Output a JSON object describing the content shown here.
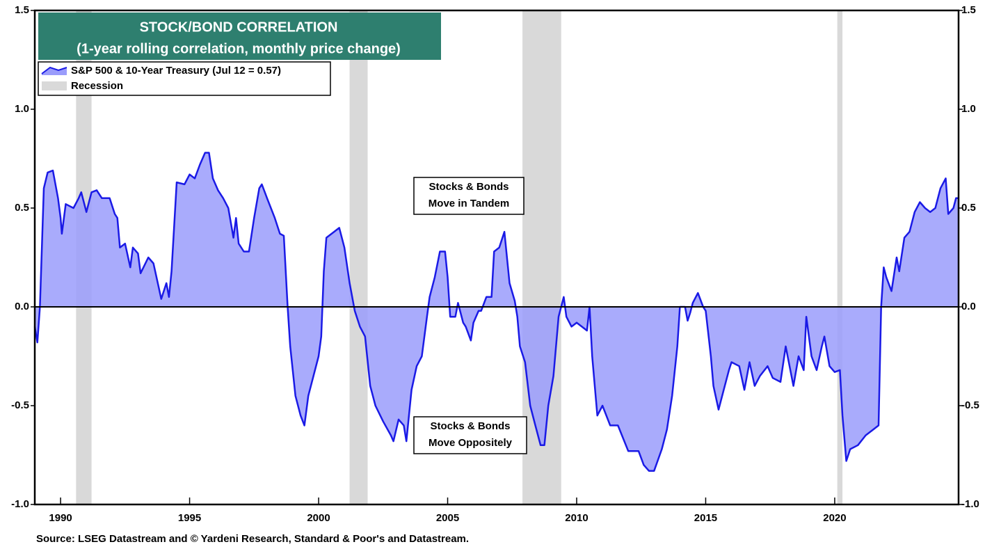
{
  "chart_data": {
    "type": "area",
    "title": "STOCK/BOND CORRELATION",
    "subtitle": "(1-year rolling correlation, monthly price change)",
    "source": "Source: LSEG Datastream and © Yardeni Research, Standard & Poor's and Datastream.",
    "xlim": [
      1989.0,
      2024.8
    ],
    "xticks": [
      1990,
      1995,
      2000,
      2005,
      2010,
      2015,
      2020
    ],
    "ylim": [
      -1.0,
      1.5
    ],
    "yticks": [
      {
        "value": -1.0,
        "label": "-1.0"
      },
      -0.5,
      {
        "value": 0.0,
        "label": "0.0"
      },
      0.5,
      {
        "value": 1.0,
        "label": "1.0"
      },
      1.5
    ],
    "y2lim": [
      -1.0,
      1.5
    ],
    "y2ticks": [
      {
        "value": -1.0,
        "label": "-1.0"
      },
      -0.5,
      {
        "value": 0.0,
        "label": "0.0"
      },
      0.5,
      {
        "value": 1.0,
        "label": "1.0"
      },
      1.5
    ],
    "legend": "top-left",
    "recessions": {
      "name": "Recession",
      "color": "#d9d9d9",
      "spans": [
        [
          1990.6,
          1991.2
        ],
        [
          2001.2,
          2001.9
        ],
        [
          2007.9,
          2009.4
        ],
        [
          2020.1,
          2020.3
        ]
      ]
    },
    "x": [
      1989.0,
      1989.1,
      1989.2,
      1989.35,
      1989.5,
      1989.7,
      1989.9,
      1990.0,
      1990.05,
      1990.2,
      1990.5,
      1990.7,
      1990.8,
      1991.0,
      1991.2,
      1991.4,
      1991.6,
      1991.9,
      1992.1,
      1992.2,
      1992.3,
      1992.5,
      1992.7,
      1992.8,
      1993.0,
      1993.1,
      1993.4,
      1993.6,
      1993.8,
      1993.9,
      1994.1,
      1994.2,
      1994.3,
      1994.5,
      1994.8,
      1995.0,
      1995.2,
      1995.4,
      1995.6,
      1995.75,
      1995.9,
      1996.1,
      1996.3,
      1996.5,
      1996.7,
      1996.8,
      1996.9,
      1997.1,
      1997.3,
      1997.5,
      1997.7,
      1997.8,
      1998.0,
      1998.3,
      1998.5,
      1998.65,
      1998.8,
      1998.9,
      1999.1,
      1999.3,
      1999.45,
      1999.6,
      1999.8,
      2000.0,
      2000.1,
      2000.2,
      2000.3,
      2000.6,
      2000.8,
      2001.0,
      2001.2,
      2001.4,
      2001.6,
      2001.8,
      2002.0,
      2002.2,
      2002.5,
      2002.8,
      2002.9,
      2003.1,
      2003.3,
      2003.4,
      2003.6,
      2003.8,
      2004.0,
      2004.2,
      2004.3,
      2004.5,
      2004.7,
      2004.9,
      2005.0,
      2005.1,
      2005.3,
      2005.4,
      2005.6,
      2005.7,
      2005.9,
      2006.0,
      2006.2,
      2006.3,
      2006.5,
      2006.7,
      2006.8,
      2007.0,
      2007.2,
      2007.4,
      2007.6,
      2007.7,
      2007.8,
      2008.0,
      2008.2,
      2008.4,
      2008.6,
      2008.75,
      2008.9,
      2009.1,
      2009.3,
      2009.5,
      2009.6,
      2009.8,
      2010.0,
      2010.2,
      2010.4,
      2010.5,
      2010.6,
      2010.8,
      2011.0,
      2011.3,
      2011.6,
      2012.0,
      2012.4,
      2012.6,
      2012.8,
      2013.0,
      2013.3,
      2013.5,
      2013.7,
      2013.9,
      2014.0,
      2014.2,
      2014.3,
      2014.4,
      2014.5,
      2014.7,
      2014.9,
      2015.0,
      2015.2,
      2015.3,
      2015.5,
      2015.7,
      2015.9,
      2016.0,
      2016.3,
      2016.5,
      2016.7,
      2016.9,
      2017.1,
      2017.4,
      2017.6,
      2017.9,
      2018.1,
      2018.4,
      2018.6,
      2018.8,
      2018.9,
      2019.1,
      2019.3,
      2019.5,
      2019.6,
      2019.8,
      2020.0,
      2020.2,
      2020.3,
      2020.45,
      2020.6,
      2020.9,
      2021.2,
      2021.5,
      2021.7,
      2021.8,
      2021.9,
      2022.0,
      2022.2,
      2022.4,
      2022.5,
      2022.7,
      2022.9,
      2023.1,
      2023.3,
      2023.5,
      2023.7,
      2023.9,
      2024.1,
      2024.3,
      2024.4,
      2024.6,
      2024.7,
      2024.8
    ],
    "series": [
      {
        "name": "S&P 500 & 10-Year Treasury (Jul 12 = 0.57)",
        "color": "#1a1ae6",
        "fill": "#9a9cfb",
        "values": [
          -0.1,
          -0.18,
          0.0,
          0.6,
          0.68,
          0.69,
          0.55,
          0.45,
          0.37,
          0.52,
          0.5,
          0.55,
          0.58,
          0.48,
          0.58,
          0.59,
          0.55,
          0.55,
          0.47,
          0.45,
          0.3,
          0.32,
          0.2,
          0.3,
          0.27,
          0.17,
          0.25,
          0.22,
          0.1,
          0.04,
          0.12,
          0.05,
          0.18,
          0.63,
          0.62,
          0.67,
          0.65,
          0.72,
          0.78,
          0.78,
          0.65,
          0.59,
          0.55,
          0.5,
          0.35,
          0.45,
          0.32,
          0.28,
          0.28,
          0.45,
          0.6,
          0.62,
          0.55,
          0.45,
          0.37,
          0.36,
          0.0,
          -0.2,
          -0.45,
          -0.55,
          -0.6,
          -0.45,
          -0.35,
          -0.25,
          -0.15,
          0.18,
          0.35,
          0.38,
          0.4,
          0.3,
          0.12,
          -0.02,
          -0.1,
          -0.15,
          -0.4,
          -0.5,
          -0.58,
          -0.65,
          -0.68,
          -0.57,
          -0.6,
          -0.68,
          -0.42,
          -0.3,
          -0.25,
          -0.05,
          0.05,
          0.15,
          0.28,
          0.28,
          0.15,
          -0.05,
          -0.05,
          0.02,
          -0.08,
          -0.1,
          -0.17,
          -0.08,
          -0.02,
          -0.02,
          0.05,
          0.05,
          0.28,
          0.3,
          0.38,
          0.12,
          0.03,
          -0.05,
          -0.2,
          -0.28,
          -0.5,
          -0.6,
          -0.7,
          -0.7,
          -0.5,
          -0.35,
          -0.05,
          0.05,
          -0.05,
          -0.1,
          -0.08,
          -0.1,
          -0.12,
          0.0,
          -0.25,
          -0.55,
          -0.5,
          -0.6,
          -0.6,
          -0.73,
          -0.73,
          -0.8,
          -0.83,
          -0.83,
          -0.72,
          -0.62,
          -0.45,
          -0.2,
          0.0,
          0.0,
          -0.07,
          -0.03,
          0.02,
          0.07,
          0.0,
          -0.02,
          -0.25,
          -0.4,
          -0.52,
          -0.42,
          -0.32,
          -0.28,
          -0.3,
          -0.42,
          -0.28,
          -0.4,
          -0.35,
          -0.3,
          -0.36,
          -0.38,
          -0.2,
          -0.4,
          -0.25,
          -0.32,
          -0.05,
          -0.25,
          -0.32,
          -0.2,
          -0.15,
          -0.3,
          -0.33,
          -0.32,
          -0.55,
          -0.78,
          -0.72,
          -0.7,
          -0.65,
          -0.62,
          -0.6,
          0.0,
          0.2,
          0.15,
          0.08,
          0.25,
          0.18,
          0.35,
          0.38,
          0.48,
          0.53,
          0.5,
          0.48,
          0.5,
          0.6,
          0.65,
          0.47,
          0.5,
          0.55,
          0.55
        ]
      }
    ],
    "annotations": [
      {
        "lines": [
          "Stocks & Bonds",
          "Move in Tandem"
        ]
      },
      {
        "lines": [
          "Stocks & Bonds",
          "Move Oppositely"
        ]
      }
    ]
  }
}
